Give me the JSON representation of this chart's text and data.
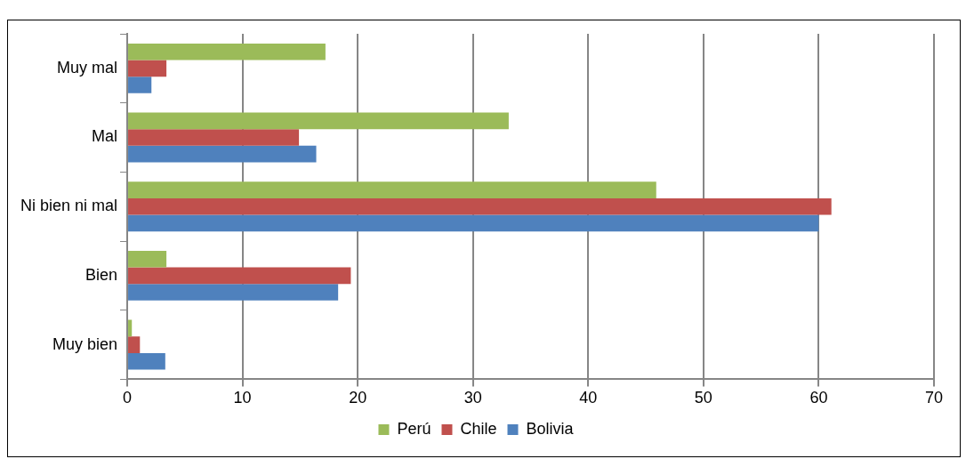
{
  "chart_data": {
    "type": "bar",
    "orientation": "horizontal",
    "categories": [
      "Muy mal",
      "Mal",
      "Ni bien ni mal",
      "Bien",
      "Muy bien"
    ],
    "series": [
      {
        "name": "Perú",
        "color": "#9bbb59",
        "values": [
          17.2,
          33.1,
          45.9,
          3.4,
          0.4
        ]
      },
      {
        "name": "Chile",
        "color": "#c0504d",
        "values": [
          3.4,
          14.9,
          61.1,
          19.4,
          1.1
        ]
      },
      {
        "name": "Bolivia",
        "color": "#4f81bd",
        "values": [
          2.1,
          16.4,
          60.0,
          18.3,
          3.3
        ]
      }
    ],
    "xlim": [
      0,
      70
    ],
    "xticks": [
      0,
      10,
      20,
      30,
      40,
      50,
      60,
      70
    ],
    "grid": "x",
    "legend": "bottom"
  }
}
